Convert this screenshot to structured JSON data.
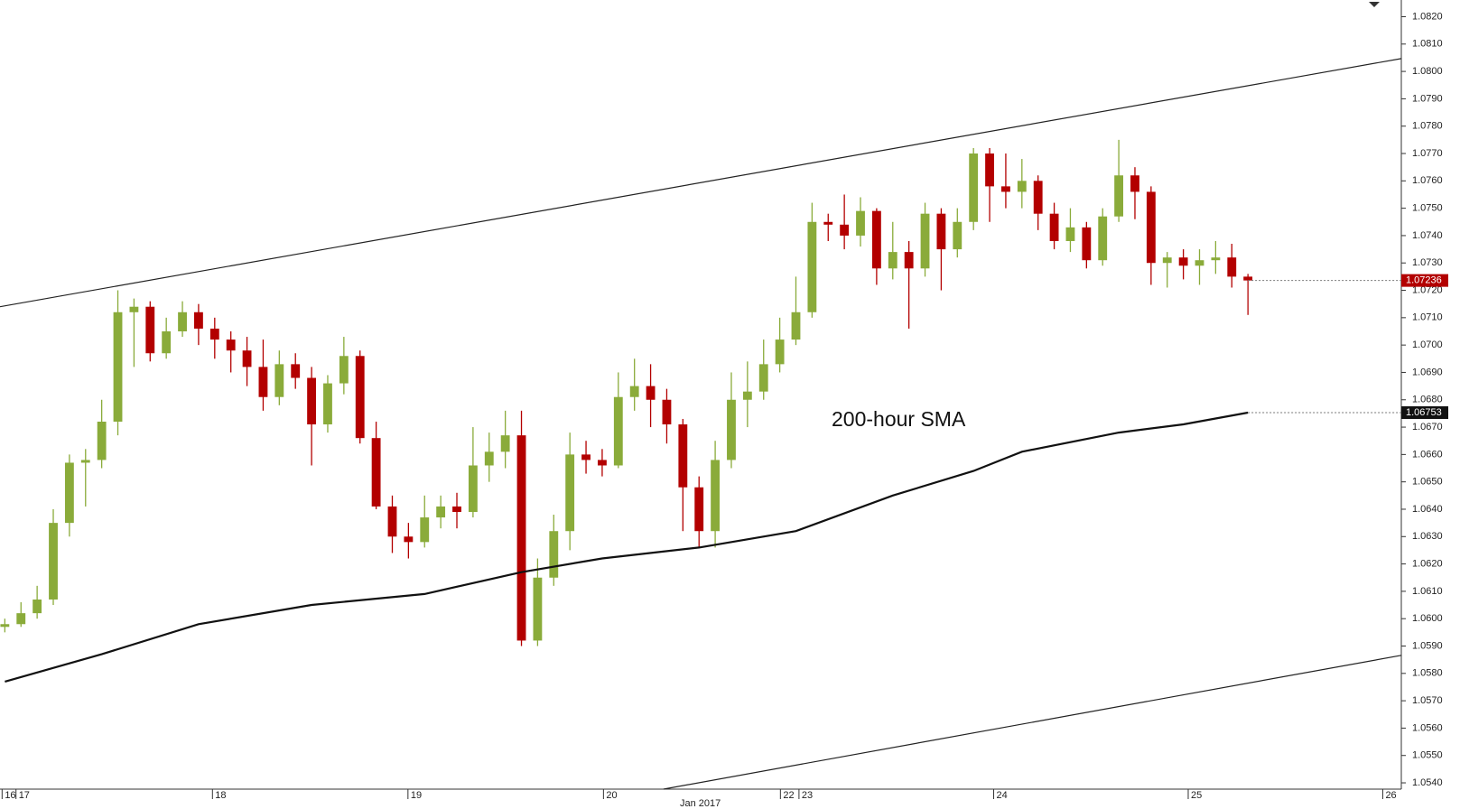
{
  "chart_data": {
    "type": "candlestick",
    "annotation": "200-hour SMA",
    "up_color": "#8aab3a",
    "down_color": "#b30000",
    "ohlc": [
      [
        1.0597,
        1.06,
        1.0595,
        1.0598
      ],
      [
        1.0598,
        1.0606,
        1.0597,
        1.0602
      ],
      [
        1.0602,
        1.0612,
        1.06,
        1.0607
      ],
      [
        1.0607,
        1.064,
        1.0605,
        1.0635
      ],
      [
        1.0635,
        1.066,
        1.063,
        1.0657
      ],
      [
        1.0657,
        1.0662,
        1.0641,
        1.0658
      ],
      [
        1.0658,
        1.068,
        1.0655,
        1.0672
      ],
      [
        1.0672,
        1.072,
        1.0667,
        1.0712
      ],
      [
        1.0712,
        1.0717,
        1.0692,
        1.0714
      ],
      [
        1.0714,
        1.0716,
        1.0694,
        1.0697
      ],
      [
        1.0697,
        1.071,
        1.0695,
        1.0705
      ],
      [
        1.0705,
        1.0716,
        1.0703,
        1.0712
      ],
      [
        1.0712,
        1.0715,
        1.07,
        1.0706
      ],
      [
        1.0706,
        1.071,
        1.0695,
        1.0702
      ],
      [
        1.0702,
        1.0705,
        1.069,
        1.0698
      ],
      [
        1.0698,
        1.0703,
        1.0685,
        1.0692
      ],
      [
        1.0692,
        1.0702,
        1.0676,
        1.0681
      ],
      [
        1.0681,
        1.0698,
        1.0678,
        1.0693
      ],
      [
        1.0693,
        1.0697,
        1.0684,
        1.0688
      ],
      [
        1.0688,
        1.0692,
        1.0656,
        1.0671
      ],
      [
        1.0671,
        1.0689,
        1.0668,
        1.0686
      ],
      [
        1.0686,
        1.0703,
        1.0682,
        1.0696
      ],
      [
        1.0696,
        1.0698,
        1.0664,
        1.0666
      ],
      [
        1.0666,
        1.0672,
        1.064,
        1.0641
      ],
      [
        1.0641,
        1.0645,
        1.0624,
        1.063
      ],
      [
        1.063,
        1.0635,
        1.0622,
        1.0628
      ],
      [
        1.0628,
        1.0645,
        1.0626,
        1.0637
      ],
      [
        1.0637,
        1.0645,
        1.0633,
        1.0641
      ],
      [
        1.0641,
        1.0646,
        1.0633,
        1.0639
      ],
      [
        1.0639,
        1.067,
        1.0637,
        1.0656
      ],
      [
        1.0656,
        1.0668,
        1.065,
        1.0661
      ],
      [
        1.0661,
        1.0676,
        1.0655,
        1.0667
      ],
      [
        1.0667,
        1.0676,
        1.059,
        1.0592
      ],
      [
        1.0592,
        1.0622,
        1.059,
        1.0615
      ],
      [
        1.0615,
        1.0638,
        1.0612,
        1.0632
      ],
      [
        1.0632,
        1.0668,
        1.0625,
        1.066
      ],
      [
        1.066,
        1.0665,
        1.0653,
        1.0658
      ],
      [
        1.0658,
        1.0662,
        1.0652,
        1.0656
      ],
      [
        1.0656,
        1.069,
        1.0655,
        1.0681
      ],
      [
        1.0681,
        1.0695,
        1.0676,
        1.0685
      ],
      [
        1.0685,
        1.0693,
        1.067,
        1.068
      ],
      [
        1.068,
        1.0684,
        1.0664,
        1.0671
      ],
      [
        1.0671,
        1.0673,
        1.0632,
        1.0648
      ],
      [
        1.0648,
        1.0652,
        1.0626,
        1.0632
      ],
      [
        1.0632,
        1.0665,
        1.0626,
        1.0658
      ],
      [
        1.0658,
        1.069,
        1.0655,
        1.068
      ],
      [
        1.068,
        1.0694,
        1.067,
        1.0683
      ],
      [
        1.0683,
        1.0702,
        1.068,
        1.0693
      ],
      [
        1.0693,
        1.071,
        1.069,
        1.0702
      ],
      [
        1.0702,
        1.0725,
        1.07,
        1.0712
      ],
      [
        1.0712,
        1.0752,
        1.071,
        1.0745
      ],
      [
        1.0745,
        1.0748,
        1.0738,
        1.0744
      ],
      [
        1.0744,
        1.0755,
        1.0735,
        1.074
      ],
      [
        1.074,
        1.0754,
        1.0736,
        1.0749
      ],
      [
        1.0749,
        1.075,
        1.0722,
        1.0728
      ],
      [
        1.0728,
        1.0745,
        1.0724,
        1.0734
      ],
      [
        1.0734,
        1.0738,
        1.0706,
        1.0728
      ],
      [
        1.0728,
        1.0752,
        1.0725,
        1.0748
      ],
      [
        1.0748,
        1.075,
        1.072,
        1.0735
      ],
      [
        1.0735,
        1.075,
        1.0732,
        1.0745
      ],
      [
        1.0745,
        1.0772,
        1.0742,
        1.077
      ],
      [
        1.077,
        1.0772,
        1.0745,
        1.0758
      ],
      [
        1.0758,
        1.077,
        1.075,
        1.0756
      ],
      [
        1.0756,
        1.0768,
        1.075,
        1.076
      ],
      [
        1.076,
        1.0762,
        1.0742,
        1.0748
      ],
      [
        1.0748,
        1.0752,
        1.0735,
        1.0738
      ],
      [
        1.0738,
        1.075,
        1.0734,
        1.0743
      ],
      [
        1.0743,
        1.0745,
        1.0728,
        1.0731
      ],
      [
        1.0731,
        1.075,
        1.0729,
        1.0747
      ],
      [
        1.0747,
        1.0775,
        1.0745,
        1.0762
      ],
      [
        1.0762,
        1.0765,
        1.0746,
        1.0756
      ],
      [
        1.0756,
        1.0758,
        1.0722,
        1.073
      ],
      [
        1.073,
        1.0734,
        1.0721,
        1.0732
      ],
      [
        1.0732,
        1.0735,
        1.0724,
        1.0729
      ],
      [
        1.0729,
        1.0735,
        1.0722,
        1.0731
      ],
      [
        1.0731,
        1.0738,
        1.0726,
        1.0732
      ],
      [
        1.0732,
        1.0737,
        1.0721,
        1.0725
      ],
      [
        1.0725,
        1.0726,
        1.0711,
        1.07236
      ]
    ],
    "sma": {
      "color": "#111111",
      "x": [
        0,
        6,
        12,
        19,
        26,
        32,
        37,
        43,
        49,
        55,
        60,
        63,
        69,
        73,
        77
      ],
      "values": [
        1.0577,
        1.0587,
        1.0598,
        1.0605,
        1.0609,
        1.0617,
        1.0622,
        1.0626,
        1.0632,
        1.0645,
        1.0654,
        1.0661,
        1.0668,
        1.0671,
        1.06753
      ]
    },
    "trendlines": [
      {
        "x": [
          -0.3,
          86.5
        ],
        "values": [
          1.0714,
          1.08047
        ]
      },
      {
        "x": [
          40.8,
          86.5
        ],
        "values": [
          1.05377,
          1.05866
        ]
      }
    ],
    "price_labels": [
      {
        "value": 1.07236,
        "label": "1.07236",
        "color": "#b30000"
      },
      {
        "value": 1.06753,
        "label": "1.06753",
        "color": "#111111"
      }
    ],
    "xlim": [
      -0.3,
      86.5
    ],
    "xticks": [
      {
        "value": -0.17,
        "label": "16"
      },
      {
        "value": 0.69,
        "label": "17"
      },
      {
        "value": 12.86,
        "label": "18"
      },
      {
        "value": 24.97,
        "label": "19"
      },
      {
        "value": 37.08,
        "label": "20"
      },
      {
        "value": 48.04,
        "label": "22"
      },
      {
        "value": 49.19,
        "label": "23"
      },
      {
        "value": 61.25,
        "label": "24"
      },
      {
        "value": 73.3,
        "label": "25"
      },
      {
        "value": 85.35,
        "label": "26"
      }
    ],
    "xlabel2": {
      "value": 43.08,
      "label": "Jan 2017"
    },
    "ylim": [
      1.05377,
      1.08261
    ],
    "yticks": [
      {
        "value": 1.054,
        "label": "1.0540"
      },
      {
        "value": 1.055,
        "label": "1.0550"
      },
      {
        "value": 1.056,
        "label": "1.0560"
      },
      {
        "value": 1.057,
        "label": "1.0570"
      },
      {
        "value": 1.058,
        "label": "1.0580"
      },
      {
        "value": 1.059,
        "label": "1.0590"
      },
      {
        "value": 1.06,
        "label": "1.0600"
      },
      {
        "value": 1.061,
        "label": "1.0610"
      },
      {
        "value": 1.062,
        "label": "1.0620"
      },
      {
        "value": 1.063,
        "label": "1.0630"
      },
      {
        "value": 1.064,
        "label": "1.0640"
      },
      {
        "value": 1.065,
        "label": "1.0650"
      },
      {
        "value": 1.066,
        "label": "1.0660"
      },
      {
        "value": 1.067,
        "label": "1.0670"
      },
      {
        "value": 1.068,
        "label": "1.0680"
      },
      {
        "value": 1.069,
        "label": "1.0690"
      },
      {
        "value": 1.07,
        "label": "1.0700"
      },
      {
        "value": 1.071,
        "label": "1.0710"
      },
      {
        "value": 1.072,
        "label": "1.0720"
      },
      {
        "value": 1.073,
        "label": "1.0730"
      },
      {
        "value": 1.074,
        "label": "1.0740"
      },
      {
        "value": 1.075,
        "label": "1.0750"
      },
      {
        "value": 1.076,
        "label": "1.0760"
      },
      {
        "value": 1.077,
        "label": "1.0770"
      },
      {
        "value": 1.078,
        "label": "1.0780"
      },
      {
        "value": 1.079,
        "label": "1.0790"
      },
      {
        "value": 1.08,
        "label": "1.0800"
      },
      {
        "value": 1.081,
        "label": "1.0810"
      },
      {
        "value": 1.082,
        "label": "1.0820"
      }
    ]
  }
}
